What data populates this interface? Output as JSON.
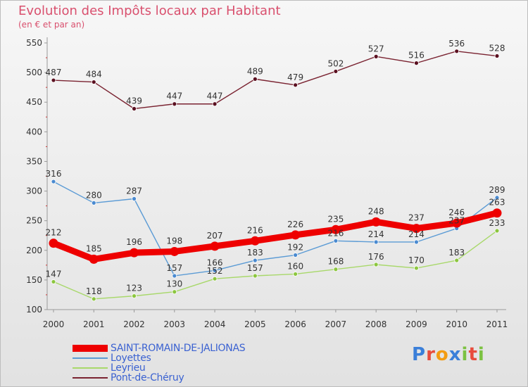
{
  "header": {
    "title": "Evolution des Impôts locaux par Habitant",
    "subtitle": "(en € et par an)"
  },
  "logo": {
    "text": "Proxiti",
    "letter_colors": [
      "#3b7fd9",
      "#e84c3d",
      "#f39c12",
      "#3b7fd9",
      "#7cc242",
      "#e84c3d",
      "#7cc242"
    ]
  },
  "chart_data": {
    "type": "line",
    "title": "Evolution des Impôts locaux par Habitant",
    "subtitle": "(en € et par an)",
    "x": [
      "2000",
      "2001",
      "2002",
      "2003",
      "2004",
      "2005",
      "2006",
      "2007",
      "2008",
      "2009",
      "2010",
      "2011"
    ],
    "ylim": [
      100,
      550
    ],
    "yticks": [
      100,
      150,
      200,
      250,
      300,
      350,
      400,
      450,
      500,
      550
    ],
    "grid": false,
    "legend_position": "bottom-left",
    "series": [
      {
        "name": "Pont-de-Chéruy",
        "color": "#7a2331",
        "marker": "#5a1020",
        "values": [
          487,
          484,
          439,
          447,
          447,
          489,
          479,
          502,
          527,
          516,
          536,
          528
        ]
      },
      {
        "name": "Loyettes",
        "color": "#5b9bd5",
        "marker": "#4a8ad0",
        "values": [
          316,
          280,
          287,
          157,
          166,
          183,
          192,
          216,
          214,
          214,
          237,
          289
        ]
      },
      {
        "name": "Leyrieu",
        "color": "#a8d86a",
        "marker": "#8cc63f",
        "values": [
          147,
          118,
          123,
          130,
          152,
          157,
          160,
          168,
          176,
          170,
          183,
          233
        ]
      },
      {
        "name": "SAINT-ROMAIN-DE-JALIONAS",
        "color": "#ee0000",
        "marker": "#ee0000",
        "values": [
          212,
          185,
          196,
          198,
          207,
          216,
          226,
          235,
          248,
          237,
          246,
          263
        ]
      }
    ]
  }
}
